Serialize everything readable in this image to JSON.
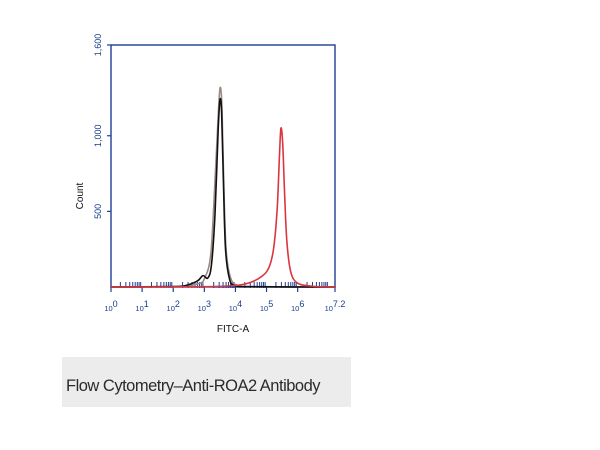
{
  "caption": "Flow Cytometry–Anti-ROA2 Antibody",
  "colors": {
    "axis": "#1f3f93",
    "grey_series": "#9a8a86",
    "black_series": "#111111",
    "red_series": "#d9363e"
  },
  "chart_data": {
    "type": "line",
    "title": "",
    "xlabel": "FITC-A",
    "ylabel": "Count",
    "x_scale": "log",
    "xlim": [
      1,
      15848931
    ],
    "ylim": [
      0,
      1600
    ],
    "x_ticks": [
      {
        "value": 1,
        "base": "10",
        "exp": "0"
      },
      {
        "value": 10,
        "base": "10",
        "exp": "1"
      },
      {
        "value": 100,
        "base": "10",
        "exp": "2"
      },
      {
        "value": 1000,
        "base": "10",
        "exp": "3"
      },
      {
        "value": 10000,
        "base": "10",
        "exp": "4"
      },
      {
        "value": 100000,
        "base": "10",
        "exp": "5"
      },
      {
        "value": 1000000,
        "base": "10",
        "exp": "6"
      },
      {
        "value": 15848931,
        "base": "10",
        "exp": "7.2"
      }
    ],
    "y_ticks": [
      {
        "value": 500,
        "label": "500"
      },
      {
        "value": 1000,
        "label": "1,000"
      },
      {
        "value": 1600,
        "label": "1,600"
      }
    ],
    "grid": false,
    "legend": "none",
    "series": [
      {
        "color": "#9a8a86",
        "x": [
          1,
          100,
          250,
          700,
          1000,
          1600,
          2200,
          2900,
          3300,
          3700,
          4200,
          5000,
          7000,
          12000,
          40000,
          15848931
        ],
        "y": [
          0,
          2,
          6,
          25,
          55,
          210,
          700,
          1200,
          1320,
          1180,
          700,
          250,
          60,
          10,
          2,
          0
        ]
      },
      {
        "color": "#111111",
        "x": [
          1,
          100,
          250,
          600,
          900,
          1300,
          1700,
          2200,
          2800,
          3200,
          3600,
          4100,
          4800,
          6500,
          10000,
          30000,
          15848931
        ],
        "y": [
          0,
          3,
          10,
          40,
          75,
          60,
          150,
          480,
          1050,
          1240,
          1150,
          700,
          250,
          50,
          8,
          2,
          0
        ]
      },
      {
        "color": "#d9363e",
        "x": [
          1,
          1000,
          10000,
          30000,
          70000,
          120000,
          170000,
          220000,
          260000,
          290000,
          330000,
          380000,
          450000,
          600000,
          1000000,
          3000000,
          15848931
        ],
        "y": [
          0,
          2,
          10,
          30,
          70,
          130,
          260,
          520,
          870,
          1050,
          950,
          620,
          300,
          100,
          25,
          5,
          0
        ]
      }
    ]
  }
}
